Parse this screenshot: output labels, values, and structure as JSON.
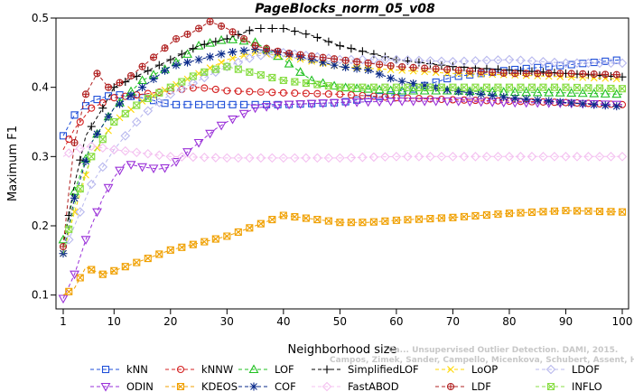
{
  "chart_data": {
    "type": "line",
    "title": "PageBlocks_norm_05_v08",
    "xlabel": "Neighborhood size",
    "ylabel": "Maximum F1",
    "xlim": [
      1,
      100
    ],
    "ylim": [
      0.08,
      0.5
    ],
    "x_ticks": [
      1,
      10,
      20,
      30,
      40,
      50,
      60,
      70,
      80,
      90,
      100
    ],
    "y_ticks": [
      0.1,
      0.2,
      0.3,
      0.4,
      0.5
    ],
    "grid": false,
    "legend_position": "bottom",
    "series": [
      {
        "name": "kNN",
        "color": "#1f4fd8",
        "marker": "square",
        "dash": "4,3",
        "points": [
          [
            1,
            0.33
          ],
          [
            3,
            0.36
          ],
          [
            6,
            0.38
          ],
          [
            10,
            0.39
          ],
          [
            15,
            0.385
          ],
          [
            20,
            0.375
          ],
          [
            30,
            0.375
          ],
          [
            40,
            0.375
          ],
          [
            50,
            0.378
          ],
          [
            60,
            0.39
          ],
          [
            70,
            0.415
          ],
          [
            80,
            0.425
          ],
          [
            90,
            0.432
          ],
          [
            100,
            0.44
          ]
        ]
      },
      {
        "name": "kNNW",
        "color": "#d42020",
        "marker": "circle",
        "dash": "4,3",
        "points": [
          [
            1,
            0.31
          ],
          [
            3,
            0.34
          ],
          [
            6,
            0.37
          ],
          [
            10,
            0.385
          ],
          [
            15,
            0.39
          ],
          [
            20,
            0.395
          ],
          [
            25,
            0.4
          ],
          [
            30,
            0.395
          ],
          [
            40,
            0.392
          ],
          [
            50,
            0.39
          ],
          [
            60,
            0.385
          ],
          [
            70,
            0.382
          ],
          [
            80,
            0.38
          ],
          [
            90,
            0.378
          ],
          [
            100,
            0.375
          ]
        ]
      },
      {
        "name": "LOF",
        "color": "#20c020",
        "marker": "triangle-up",
        "dash": "4,3",
        "points": [
          [
            1,
            0.18
          ],
          [
            3,
            0.25
          ],
          [
            6,
            0.32
          ],
          [
            10,
            0.37
          ],
          [
            15,
            0.41
          ],
          [
            20,
            0.43
          ],
          [
            25,
            0.46
          ],
          [
            30,
            0.47
          ],
          [
            35,
            0.465
          ],
          [
            40,
            0.44
          ],
          [
            45,
            0.41
          ],
          [
            50,
            0.4
          ],
          [
            60,
            0.395
          ],
          [
            70,
            0.395
          ],
          [
            80,
            0.393
          ],
          [
            90,
            0.392
          ],
          [
            100,
            0.39
          ]
        ]
      },
      {
        "name": "SimplifiedLOF",
        "color": "#000000",
        "marker": "plus",
        "dash": "4,3",
        "points": [
          [
            1,
            0.17
          ],
          [
            3,
            0.26
          ],
          [
            5,
            0.33
          ],
          [
            8,
            0.37
          ],
          [
            10,
            0.4
          ],
          [
            15,
            0.42
          ],
          [
            20,
            0.44
          ],
          [
            25,
            0.46
          ],
          [
            30,
            0.47
          ],
          [
            35,
            0.485
          ],
          [
            40,
            0.485
          ],
          [
            45,
            0.475
          ],
          [
            50,
            0.46
          ],
          [
            60,
            0.44
          ],
          [
            70,
            0.43
          ],
          [
            80,
            0.425
          ],
          [
            90,
            0.42
          ],
          [
            100,
            0.415
          ]
        ]
      },
      {
        "name": "LoOP",
        "color": "#ffd700",
        "marker": "cross",
        "dash": "4,3",
        "points": [
          [
            1,
            0.16
          ],
          [
            3,
            0.22
          ],
          [
            6,
            0.3
          ],
          [
            10,
            0.35
          ],
          [
            15,
            0.38
          ],
          [
            20,
            0.4
          ],
          [
            25,
            0.42
          ],
          [
            30,
            0.44
          ],
          [
            35,
            0.45
          ],
          [
            40,
            0.445
          ],
          [
            50,
            0.43
          ],
          [
            60,
            0.425
          ],
          [
            70,
            0.42
          ],
          [
            80,
            0.418
          ],
          [
            90,
            0.415
          ],
          [
            100,
            0.412
          ]
        ]
      },
      {
        "name": "LDOF",
        "color": "#b8b8ee",
        "marker": "diamond",
        "dash": "4,3",
        "points": [
          [
            1,
            0.16
          ],
          [
            3,
            0.2
          ],
          [
            6,
            0.26
          ],
          [
            10,
            0.31
          ],
          [
            15,
            0.36
          ],
          [
            20,
            0.39
          ],
          [
            25,
            0.41
          ],
          [
            30,
            0.43
          ],
          [
            35,
            0.445
          ],
          [
            40,
            0.45
          ],
          [
            45,
            0.445
          ],
          [
            50,
            0.44
          ],
          [
            60,
            0.44
          ],
          [
            70,
            0.437
          ],
          [
            80,
            0.44
          ],
          [
            90,
            0.435
          ],
          [
            100,
            0.435
          ]
        ]
      },
      {
        "name": "ODIN",
        "color": "#9a30d8",
        "marker": "triangle-down",
        "dash": "4,3",
        "points": [
          [
            1,
            0.095
          ],
          [
            3,
            0.13
          ],
          [
            5,
            0.18
          ],
          [
            8,
            0.24
          ],
          [
            10,
            0.27
          ],
          [
            12,
            0.29
          ],
          [
            15,
            0.285
          ],
          [
            18,
            0.282
          ],
          [
            20,
            0.285
          ],
          [
            22,
            0.3
          ],
          [
            25,
            0.32
          ],
          [
            28,
            0.34
          ],
          [
            30,
            0.35
          ],
          [
            35,
            0.37
          ],
          [
            40,
            0.375
          ],
          [
            50,
            0.378
          ],
          [
            60,
            0.38
          ],
          [
            70,
            0.38
          ],
          [
            80,
            0.378
          ],
          [
            90,
            0.377
          ],
          [
            100,
            0.375
          ]
        ]
      },
      {
        "name": "KDEOS",
        "color": "#f0a000",
        "marker": "square-x",
        "dash": "4,3",
        "points": [
          [
            1,
            0.1
          ],
          [
            3,
            0.11
          ],
          [
            5,
            0.14
          ],
          [
            8,
            0.13
          ],
          [
            10,
            0.135
          ],
          [
            15,
            0.15
          ],
          [
            20,
            0.165
          ],
          [
            25,
            0.175
          ],
          [
            30,
            0.185
          ],
          [
            35,
            0.2
          ],
          [
            40,
            0.215
          ],
          [
            45,
            0.21
          ],
          [
            50,
            0.205
          ],
          [
            55,
            0.205
          ],
          [
            60,
            0.208
          ],
          [
            70,
            0.212
          ],
          [
            80,
            0.218
          ],
          [
            90,
            0.222
          ],
          [
            100,
            0.22
          ]
        ]
      },
      {
        "name": "COF",
        "color": "#0a2a8a",
        "marker": "asterisk",
        "dash": "4,3",
        "points": [
          [
            1,
            0.16
          ],
          [
            3,
            0.24
          ],
          [
            6,
            0.32
          ],
          [
            10,
            0.37
          ],
          [
            15,
            0.4
          ],
          [
            20,
            0.43
          ],
          [
            25,
            0.44
          ],
          [
            30,
            0.45
          ],
          [
            35,
            0.455
          ],
          [
            40,
            0.45
          ],
          [
            45,
            0.44
          ],
          [
            50,
            0.43
          ],
          [
            55,
            0.425
          ],
          [
            60,
            0.41
          ],
          [
            70,
            0.395
          ],
          [
            80,
            0.385
          ],
          [
            90,
            0.378
          ],
          [
            100,
            0.372
          ]
        ]
      },
      {
        "name": "FastABOD",
        "color": "#f4c0f0",
        "marker": "diamond",
        "dash": "4,3",
        "points": [
          [
            1,
            0.3
          ],
          [
            3,
            0.31
          ],
          [
            6,
            0.315
          ],
          [
            10,
            0.31
          ],
          [
            15,
            0.305
          ],
          [
            20,
            0.3
          ],
          [
            30,
            0.298
          ],
          [
            40,
            0.298
          ],
          [
            50,
            0.298
          ],
          [
            60,
            0.3
          ],
          [
            70,
            0.3
          ],
          [
            80,
            0.3
          ],
          [
            90,
            0.3
          ],
          [
            100,
            0.3
          ]
        ]
      },
      {
        "name": "LDF",
        "color": "#b02020",
        "marker": "circle-plus",
        "dash": "4,3",
        "points": [
          [
            1,
            0.17
          ],
          [
            2,
            0.25
          ],
          [
            3,
            0.32
          ],
          [
            5,
            0.39
          ],
          [
            7,
            0.42
          ],
          [
            9,
            0.4
          ],
          [
            12,
            0.41
          ],
          [
            15,
            0.43
          ],
          [
            18,
            0.45
          ],
          [
            21,
            0.47
          ],
          [
            24,
            0.48
          ],
          [
            27,
            0.495
          ],
          [
            30,
            0.485
          ],
          [
            35,
            0.46
          ],
          [
            40,
            0.45
          ],
          [
            50,
            0.44
          ],
          [
            60,
            0.43
          ],
          [
            70,
            0.425
          ],
          [
            80,
            0.42
          ],
          [
            90,
            0.42
          ],
          [
            100,
            0.418
          ]
        ]
      },
      {
        "name": "INFLO",
        "color": "#88dd44",
        "marker": "square-x",
        "dash": "4,3",
        "points": [
          [
            1,
            0.16
          ],
          [
            3,
            0.23
          ],
          [
            6,
            0.3
          ],
          [
            10,
            0.35
          ],
          [
            15,
            0.38
          ],
          [
            20,
            0.4
          ],
          [
            25,
            0.42
          ],
          [
            30,
            0.43
          ],
          [
            35,
            0.42
          ],
          [
            40,
            0.41
          ],
          [
            50,
            0.4
          ],
          [
            60,
            0.4
          ],
          [
            70,
            0.4
          ],
          [
            80,
            0.4
          ],
          [
            90,
            0.4
          ],
          [
            100,
            0.398
          ]
        ]
      }
    ]
  },
  "watermark": {
    "line1": "Ca... Unsupervised Outlier Detection. DAMI, 2015.",
    "line2": "Campos, Zimek, Sander, Campello, Micenkova, Schubert, Assent, Houle"
  }
}
